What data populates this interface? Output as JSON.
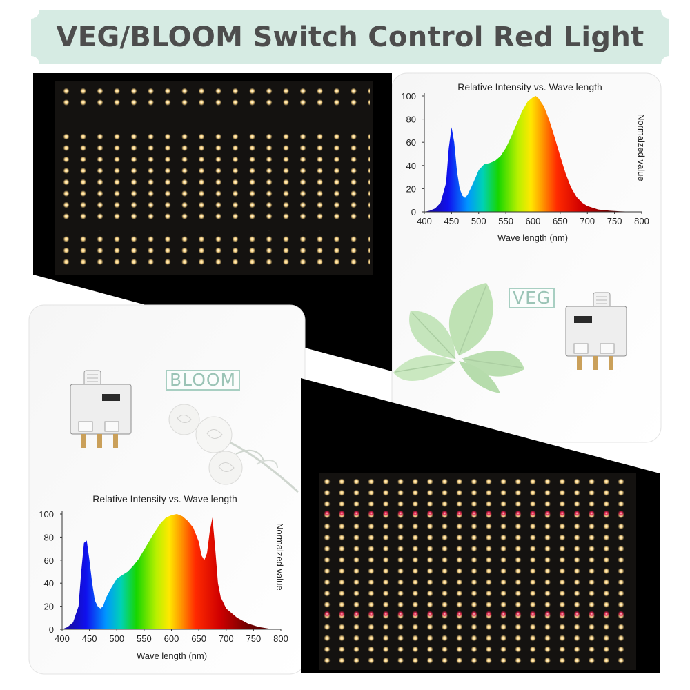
{
  "title": "VEG/BLOOM Switch Control Red Light",
  "veg": {
    "label": "VEG",
    "chart_data": {
      "type": "area",
      "title": "Relative Intensity vs. Wave length",
      "xlabel": "Wave length (nm)",
      "ylabel": "Normalzed value",
      "xlim": [
        400,
        800
      ],
      "ylim": [
        0,
        100
      ],
      "xticks": [
        400,
        450,
        500,
        550,
        600,
        650,
        700,
        750,
        800
      ],
      "yticks": [
        0,
        20,
        40,
        60,
        80,
        100
      ],
      "x": [
        400,
        410,
        420,
        430,
        440,
        445,
        450,
        455,
        460,
        465,
        470,
        475,
        480,
        490,
        500,
        510,
        520,
        530,
        540,
        550,
        560,
        570,
        580,
        590,
        600,
        605,
        610,
        620,
        630,
        640,
        650,
        660,
        670,
        680,
        690,
        700,
        720,
        740,
        760,
        780,
        800
      ],
      "y": [
        0,
        1,
        3,
        8,
        25,
        55,
        73,
        60,
        35,
        20,
        14,
        12,
        15,
        25,
        36,
        41,
        42,
        44,
        48,
        55,
        65,
        76,
        87,
        95,
        99,
        100,
        98,
        91,
        79,
        64,
        48,
        33,
        21,
        13,
        8,
        5,
        2,
        1,
        0.5,
        0.2,
        0
      ]
    }
  },
  "bloom": {
    "label": "BLOOM",
    "chart_data": {
      "type": "area",
      "title": "Relative Intensity vs. Wave length",
      "xlabel": "Wave length (nm)",
      "ylabel": "Normalzed value",
      "xlim": [
        400,
        800
      ],
      "ylim": [
        0,
        100
      ],
      "xticks": [
        400,
        450,
        500,
        550,
        600,
        650,
        700,
        750,
        800
      ],
      "yticks": [
        0,
        20,
        40,
        60,
        80,
        100
      ],
      "x": [
        400,
        410,
        420,
        430,
        435,
        440,
        445,
        450,
        455,
        460,
        465,
        470,
        475,
        480,
        490,
        500,
        510,
        520,
        530,
        540,
        550,
        560,
        570,
        580,
        590,
        600,
        610,
        620,
        630,
        640,
        650,
        655,
        660,
        665,
        670,
        675,
        680,
        685,
        690,
        700,
        720,
        740,
        760,
        780,
        800
      ],
      "y": [
        0,
        2,
        6,
        20,
        50,
        75,
        77,
        60,
        40,
        25,
        20,
        18,
        20,
        27,
        36,
        44,
        47,
        50,
        55,
        61,
        69,
        77,
        85,
        92,
        97,
        99,
        100,
        98,
        94,
        88,
        76,
        64,
        60,
        66,
        85,
        97,
        70,
        40,
        28,
        18,
        10,
        5,
        2,
        0.5,
        0
      ]
    }
  }
}
